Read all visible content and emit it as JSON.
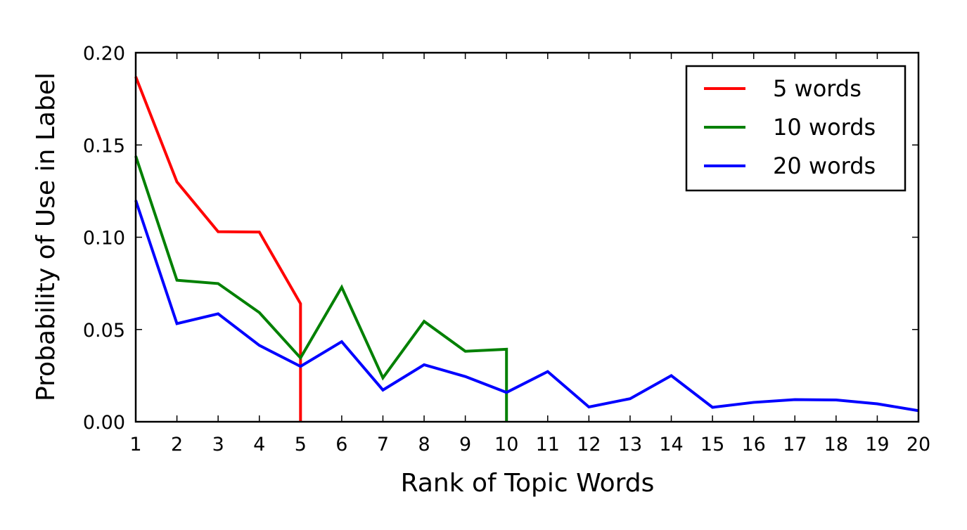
{
  "chart_data": {
    "type": "line",
    "xlabel": "Rank of Topic Words",
    "ylabel": "Probability of Use in Label",
    "xlim": [
      1,
      20
    ],
    "ylim": [
      0,
      0.2
    ],
    "xticks": [
      "1",
      "2",
      "3",
      "4",
      "5",
      "6",
      "7",
      "8",
      "9",
      "10",
      "11",
      "12",
      "13",
      "14",
      "15",
      "16",
      "17",
      "18",
      "19",
      "20"
    ],
    "yticks": [
      "0.00",
      "0.05",
      "0.10",
      "0.15",
      "0.20"
    ],
    "grid": false,
    "legend_position": "top-right",
    "series": [
      {
        "name": "5 words",
        "color": "#ff0000",
        "x": [
          1,
          2,
          3,
          4,
          5
        ],
        "values": [
          0.187,
          0.13,
          0.103,
          0.1028,
          0.064
        ],
        "drop_to_zero_at_end": true
      },
      {
        "name": "10 words",
        "color": "#008000",
        "x": [
          1,
          2,
          3,
          4,
          5,
          6,
          7,
          8,
          9,
          10
        ],
        "values": [
          0.144,
          0.0767,
          0.0749,
          0.0592,
          0.0346,
          0.0729,
          0.0238,
          0.0544,
          0.0382,
          0.0393
        ],
        "drop_to_zero_at_end": true
      },
      {
        "name": "20 words",
        "color": "#0000ff",
        "x": [
          1,
          2,
          3,
          4,
          5,
          6,
          7,
          8,
          9,
          10,
          11,
          12,
          13,
          14,
          15,
          16,
          17,
          18,
          19,
          20
        ],
        "values": [
          0.12,
          0.0532,
          0.0585,
          0.0414,
          0.03,
          0.0434,
          0.0172,
          0.0309,
          0.0245,
          0.0159,
          0.0272,
          0.008,
          0.0125,
          0.025,
          0.0078,
          0.0105,
          0.012,
          0.0118,
          0.0097,
          0.006
        ],
        "drop_to_zero_at_end": false
      }
    ]
  }
}
